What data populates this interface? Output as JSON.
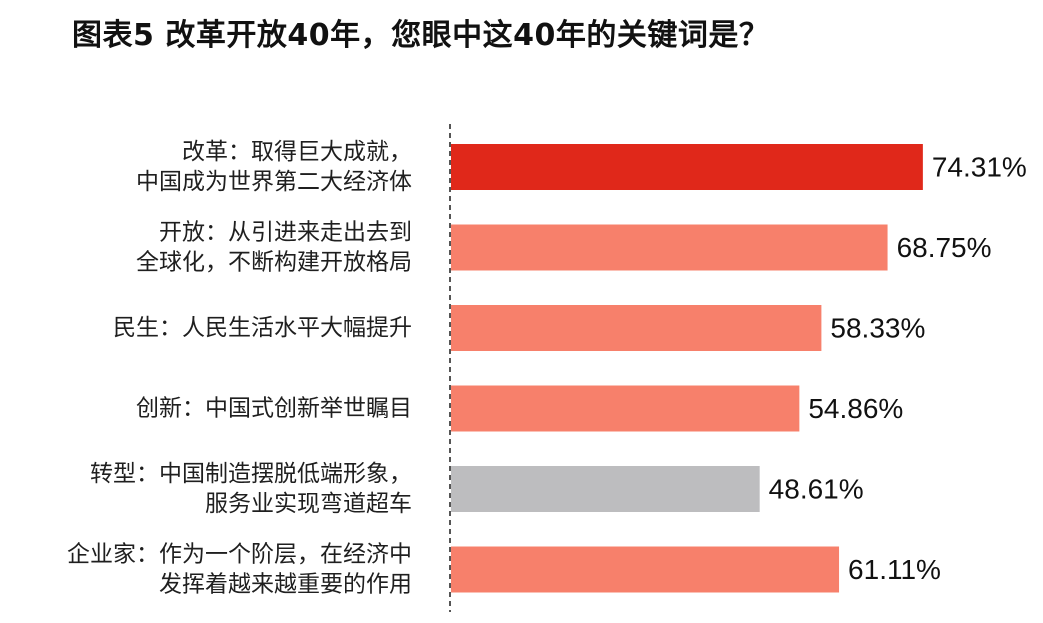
{
  "title": "图表5  改革开放40年，您眼中这40年的关键词是？",
  "colors": {
    "highlight": "#e0281a",
    "main": "#f7806b",
    "muted": "#bdbdbf",
    "axis": "#555555"
  },
  "chart_data": {
    "type": "bar",
    "orientation": "horizontal",
    "title": "图表5  改革开放40年，您眼中这40年的关键词是？",
    "xlim": [
      0,
      100
    ],
    "grid": false,
    "legend": "none",
    "categories": [
      [
        "改革：取得巨大成就，",
        "中国成为世界第二大经济体"
      ],
      [
        "开放：从引进来走出去到",
        "全球化，不断构建开放格局"
      ],
      [
        "民生：人民生活水平大幅提升"
      ],
      [
        "创新：中国式创新举世瞩目"
      ],
      [
        "转型：中国制造摆脱低端形象，",
        "服务业实现弯道超车"
      ],
      [
        "企业家：作为一个阶层，在经济中",
        "发挥着越来越重要的作用"
      ]
    ],
    "values": [
      74.31,
      68.75,
      58.33,
      54.86,
      48.61,
      61.11
    ],
    "value_labels": [
      "74.31%",
      "68.75%",
      "58.33%",
      "54.86%",
      "48.61%",
      "61.11%"
    ],
    "bar_colors": [
      "highlight",
      "main",
      "main",
      "main",
      "muted",
      "main"
    ]
  }
}
